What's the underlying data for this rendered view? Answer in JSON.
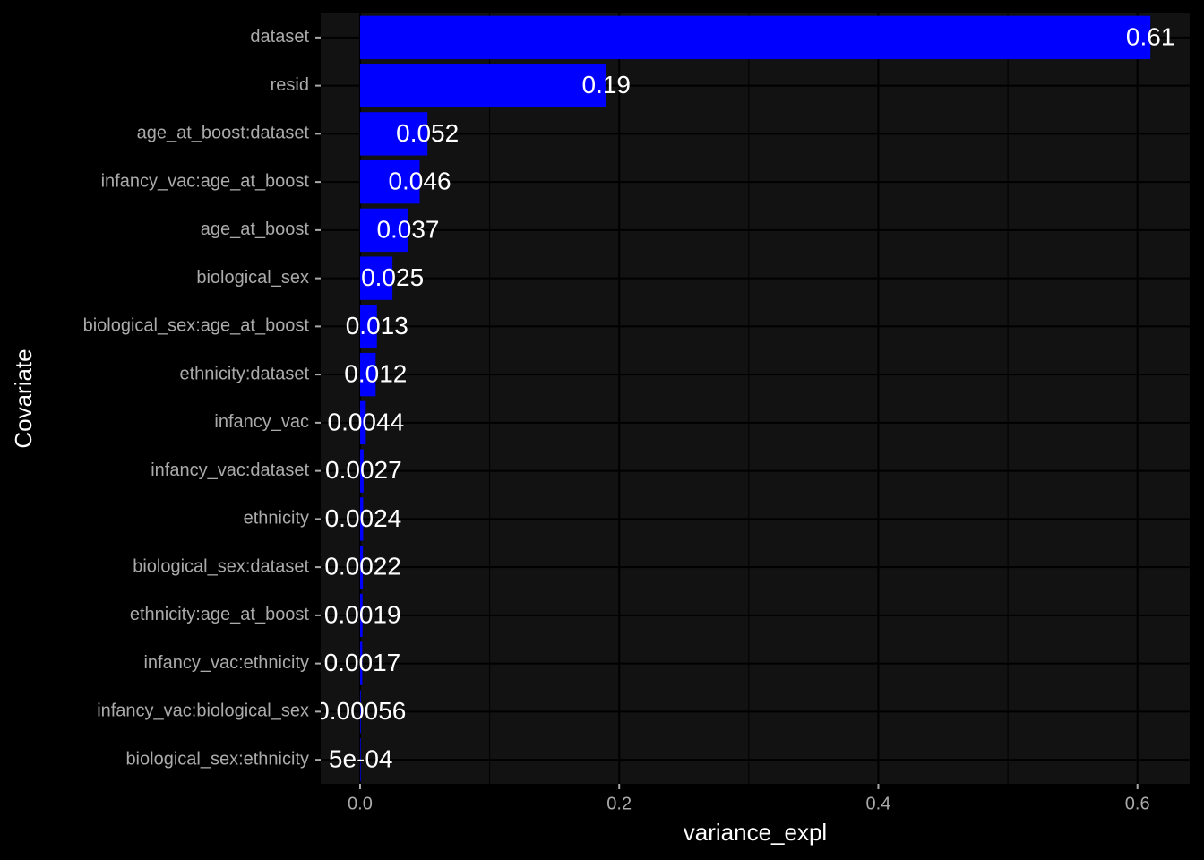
{
  "chart_data": {
    "type": "barh",
    "x_label": "variance_expl",
    "y_label": "Covariate",
    "categories": [
      "dataset",
      "resid",
      "age_at_boost:dataset",
      "infancy_vac:age_at_boost",
      "age_at_boost",
      "biological_sex",
      "biological_sex:age_at_boost",
      "ethnicity:dataset",
      "infancy_vac",
      "infancy_vac:dataset",
      "ethnicity",
      "biological_sex:dataset",
      "ethnicity:age_at_boost",
      "infancy_vac:ethnicity",
      "infancy_vac:biological_sex",
      "biological_sex:ethnicity"
    ],
    "values": [
      0.61,
      0.19,
      0.052,
      0.046,
      0.037,
      0.025,
      0.013,
      0.012,
      0.0044,
      0.0027,
      0.0024,
      0.0022,
      0.0019,
      0.0017,
      0.00056,
      0.0005
    ],
    "value_labels": [
      "0.61",
      "0.19",
      "0.052",
      "0.046",
      "0.037",
      "0.025",
      "0.013",
      "0.012",
      "0.0044",
      "0.0027",
      "0.0024",
      "0.0022",
      "0.0019",
      "0.0017",
      "0.00056",
      "5e-04"
    ],
    "color": "#0000ff",
    "xlim": [
      -0.0304,
      0.6403
    ],
    "xticks": [
      {
        "value": 0,
        "label": "0.0"
      },
      0.2,
      0.4,
      0.6
    ],
    "x_minor_grid": [
      0.1,
      0.3,
      0.5
    ],
    "grid": true
  }
}
